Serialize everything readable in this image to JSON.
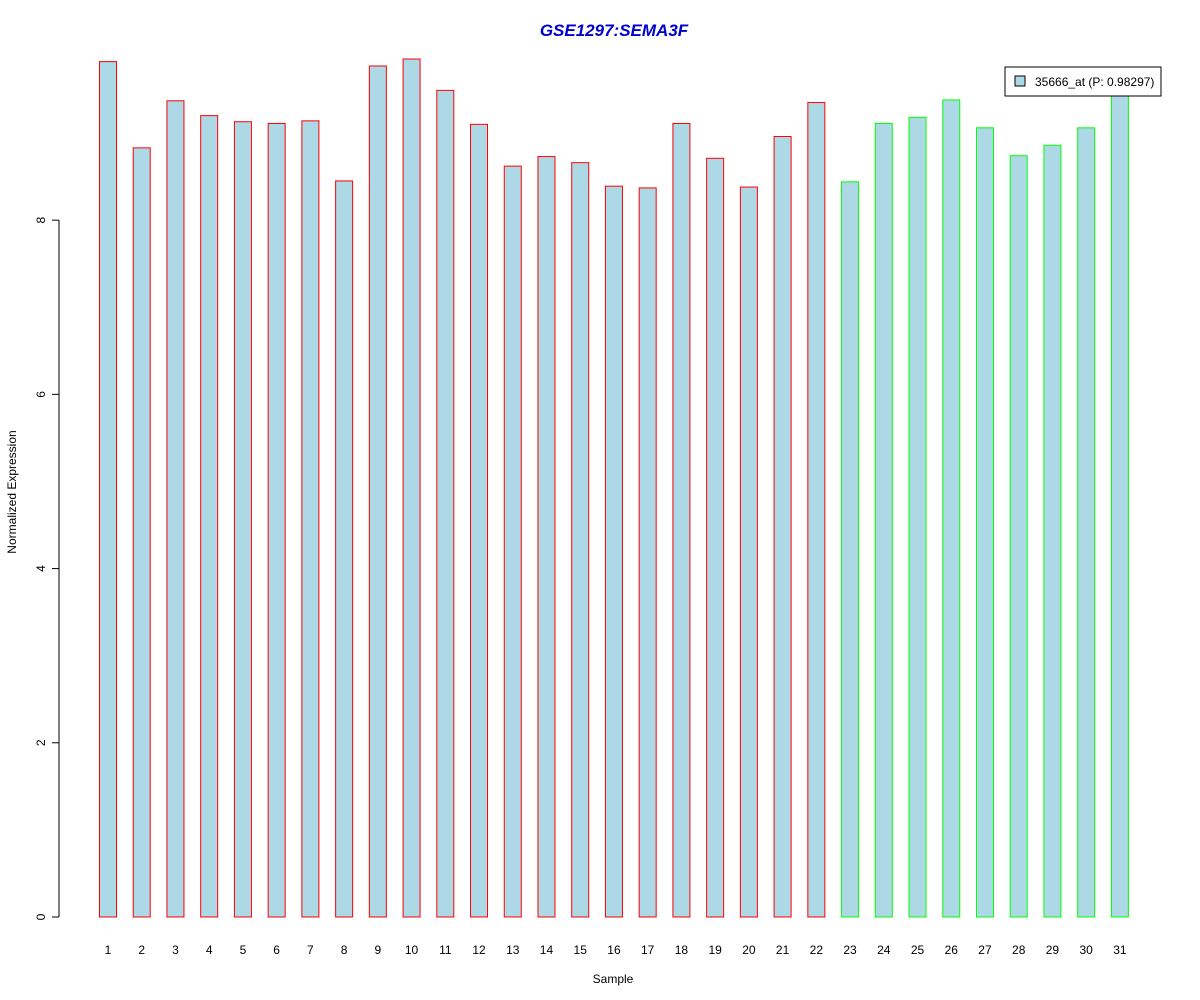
{
  "chart_data": {
    "type": "bar",
    "title": "GSE1297:SEMA3F",
    "xlabel": "Sample",
    "ylabel": "Normalized Expression",
    "ylim": [
      0,
      9.85
    ],
    "yticks": [
      "0",
      "2",
      "4",
      "6",
      "8"
    ],
    "categories": [
      "1",
      "2",
      "3",
      "4",
      "5",
      "6",
      "7",
      "8",
      "9",
      "10",
      "11",
      "12",
      "13",
      "14",
      "15",
      "16",
      "17",
      "18",
      "19",
      "20",
      "21",
      "22",
      "23",
      "24",
      "25",
      "26",
      "27",
      "28",
      "29",
      "30",
      "31"
    ],
    "series": [
      {
        "name": "35666_at (P: 0.98297)",
        "values": [
          9.82,
          8.83,
          9.37,
          9.2,
          9.13,
          9.11,
          9.14,
          8.45,
          9.77,
          9.85,
          9.49,
          9.1,
          8.62,
          8.73,
          8.66,
          8.39,
          8.37,
          9.11,
          8.71,
          8.38,
          8.96,
          9.35,
          8.44,
          9.11,
          9.18,
          9.38,
          9.06,
          8.74,
          8.86,
          9.06,
          9.63
        ]
      }
    ],
    "groups": [
      {
        "from": 1,
        "to": 22,
        "border_color": "#ff0000"
      },
      {
        "from": 23,
        "to": 31,
        "border_color": "#00ff00"
      }
    ],
    "bar_fill": "#add8e6",
    "title_color": "#0000cc",
    "legend": {
      "label": "35666_at (P: 0.98297)",
      "placement": "top-right"
    }
  }
}
